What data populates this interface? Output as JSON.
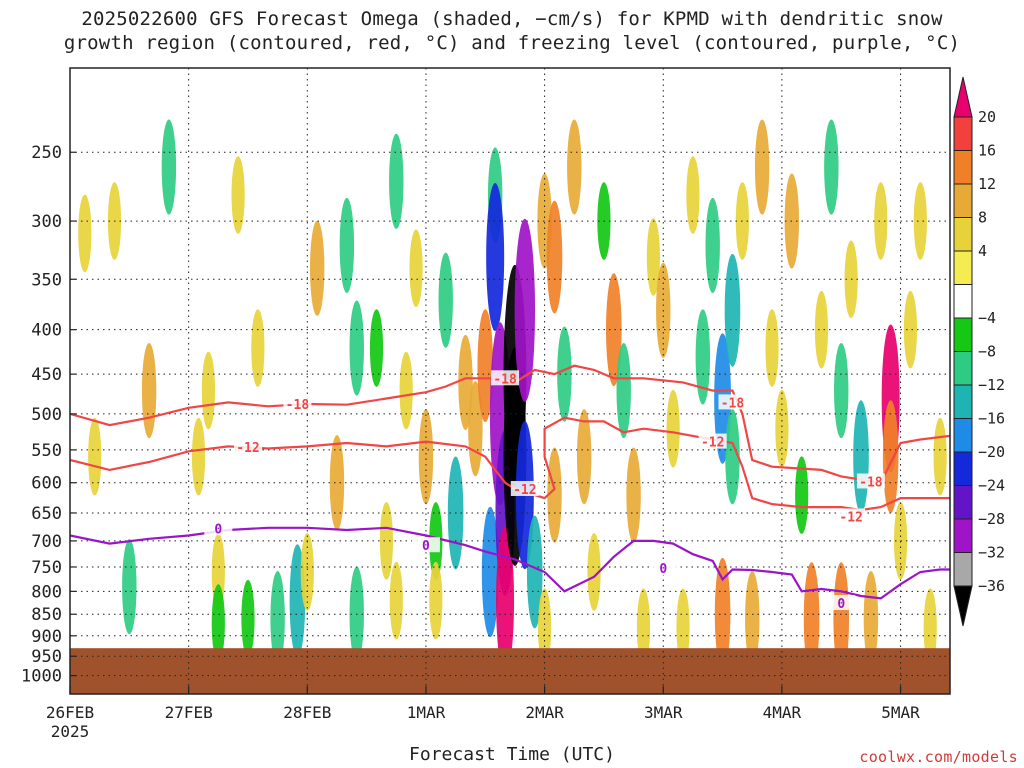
{
  "title_line1": "2025022600 GFS Forecast Omega (shaded, −cm/s) for KPMD with dendritic snow",
  "title_line2": "growth region (contoured, red, °C) and freezing level (contoured, purple, °C)",
  "xlabel": "Forecast Time (UTC)",
  "credit": "coolwx.com/models",
  "chart_data": {
    "type": "heatmap",
    "title": "2025022600 GFS Forecast Omega (shaded, −cm/s) for KPMD with dendritic snow growth region (contoured, red, °C) and freezing level (contoured, purple, °C)",
    "xlabel": "Forecast Time (UTC)",
    "ylabel": "",
    "y_scale": "log-pressure",
    "y_ticks": [
      250,
      300,
      350,
      400,
      450,
      500,
      550,
      600,
      650,
      700,
      750,
      800,
      850,
      900,
      950,
      1000
    ],
    "x_ticks": [
      "26FEB",
      "27FEB",
      "28FEB",
      "1MAR",
      "2MAR",
      "3MAR",
      "4MAR",
      "5MAR"
    ],
    "x_year_label": "2025",
    "x_range_hours": [
      0,
      178
    ],
    "y_range_hPa": [
      200,
      1050
    ],
    "ground_level_hPa": 930,
    "ground_color": "#a0522d",
    "grid": "dotted",
    "colorbar": {
      "labels": [
        "20",
        "16",
        "12",
        "8",
        "4",
        "−4",
        "−8",
        "−12",
        "−16",
        "−20",
        "−24",
        "−28",
        "−32",
        "−36"
      ],
      "colors": [
        "#e8006e",
        "#f2403c",
        "#f08028",
        "#e8aa36",
        "#e8d23a",
        "#f4ec50",
        "#ffffff",
        "#14c814",
        "#2ecc82",
        "#1eb4b4",
        "#1e8ce6",
        "#1428dc",
        "#6414c8",
        "#a014c8",
        "#a8a8a8",
        "#000000"
      ]
    },
    "omega_cells": [
      {
        "t": 3,
        "p": 310,
        "v": 4
      },
      {
        "t": 5,
        "p": 560,
        "v": 4
      },
      {
        "t": 9,
        "p": 300,
        "v": 4
      },
      {
        "t": 16,
        "p": 470,
        "v": 8
      },
      {
        "t": 12,
        "p": 790,
        "v": -8
      },
      {
        "t": 20,
        "p": 260,
        "v": -8
      },
      {
        "t": 26,
        "p": 560,
        "v": 4
      },
      {
        "t": 28,
        "p": 470,
        "v": 4
      },
      {
        "t": 30,
        "p": 760,
        "v": 4
      },
      {
        "t": 34,
        "p": 280,
        "v": 4
      },
      {
        "t": 38,
        "p": 420,
        "v": 4
      },
      {
        "t": 30,
        "p": 870,
        "v": -4
      },
      {
        "t": 36,
        "p": 860,
        "v": -4
      },
      {
        "t": 42,
        "p": 860,
        "v": -8
      },
      {
        "t": 46,
        "p": 820,
        "v": -12
      },
      {
        "t": 48,
        "p": 760,
        "v": 4
      },
      {
        "t": 50,
        "p": 340,
        "v": 8
      },
      {
        "t": 54,
        "p": 600,
        "v": 8
      },
      {
        "t": 56,
        "p": 320,
        "v": -8
      },
      {
        "t": 58,
        "p": 420,
        "v": -8
      },
      {
        "t": 58,
        "p": 850,
        "v": -8
      },
      {
        "t": 62,
        "p": 420,
        "v": -4
      },
      {
        "t": 64,
        "p": 700,
        "v": 4
      },
      {
        "t": 66,
        "p": 820,
        "v": 4
      },
      {
        "t": 66,
        "p": 270,
        "v": -8
      },
      {
        "t": 68,
        "p": 470,
        "v": 4
      },
      {
        "t": 70,
        "p": 340,
        "v": 4
      },
      {
        "t": 72,
        "p": 560,
        "v": 8
      },
      {
        "t": 74,
        "p": 700,
        "v": -4
      },
      {
        "t": 74,
        "p": 820,
        "v": 4
      },
      {
        "t": 76,
        "p": 370,
        "v": -8
      },
      {
        "t": 78,
        "p": 650,
        "v": -12
      },
      {
        "t": 80,
        "p": 460,
        "v": 8
      },
      {
        "t": 82,
        "p": 520,
        "v": 8
      },
      {
        "t": 84,
        "p": 440,
        "v": 12
      },
      {
        "t": 85,
        "p": 760,
        "v": -16
      },
      {
        "t": 86,
        "p": 280,
        "v": -8
      },
      {
        "t": 86,
        "p": 330,
        "v": -20
      },
      {
        "t": 87,
        "p": 500,
        "v": -28
      },
      {
        "t": 88,
        "p": 650,
        "v": -24
      },
      {
        "t": 88,
        "p": 820,
        "v": 20
      },
      {
        "t": 90,
        "p": 450,
        "v": -36
      },
      {
        "t": 90,
        "p": 560,
        "v": -36
      },
      {
        "t": 92,
        "p": 380,
        "v": -28
      },
      {
        "t": 92,
        "p": 620,
        "v": -20
      },
      {
        "t": 94,
        "p": 760,
        "v": -12
      },
      {
        "t": 96,
        "p": 300,
        "v": 8
      },
      {
        "t": 96,
        "p": 880,
        "v": 4
      },
      {
        "t": 98,
        "p": 330,
        "v": 12
      },
      {
        "t": 98,
        "p": 620,
        "v": 8
      },
      {
        "t": 100,
        "p": 450,
        "v": -8
      },
      {
        "t": 102,
        "p": 260,
        "v": 8
      },
      {
        "t": 104,
        "p": 560,
        "v": 8
      },
      {
        "t": 106,
        "p": 760,
        "v": 4
      },
      {
        "t": 108,
        "p": 300,
        "v": -4
      },
      {
        "t": 110,
        "p": 400,
        "v": 12
      },
      {
        "t": 112,
        "p": 470,
        "v": -8
      },
      {
        "t": 114,
        "p": 620,
        "v": 8
      },
      {
        "t": 116,
        "p": 880,
        "v": 4
      },
      {
        "t": 118,
        "p": 330,
        "v": 4
      },
      {
        "t": 120,
        "p": 380,
        "v": 8
      },
      {
        "t": 122,
        "p": 520,
        "v": 4
      },
      {
        "t": 124,
        "p": 880,
        "v": 4
      },
      {
        "t": 126,
        "p": 280,
        "v": 4
      },
      {
        "t": 128,
        "p": 430,
        "v": -8
      },
      {
        "t": 130,
        "p": 320,
        "v": -8
      },
      {
        "t": 132,
        "p": 480,
        "v": -16
      },
      {
        "t": 132,
        "p": 850,
        "v": 12
      },
      {
        "t": 134,
        "p": 380,
        "v": -12
      },
      {
        "t": 134,
        "p": 560,
        "v": -8
      },
      {
        "t": 136,
        "p": 300,
        "v": 4
      },
      {
        "t": 138,
        "p": 860,
        "v": 8
      },
      {
        "t": 140,
        "p": 260,
        "v": 8
      },
      {
        "t": 142,
        "p": 420,
        "v": 4
      },
      {
        "t": 144,
        "p": 520,
        "v": 4
      },
      {
        "t": 146,
        "p": 300,
        "v": 8
      },
      {
        "t": 148,
        "p": 620,
        "v": -4
      },
      {
        "t": 150,
        "p": 860,
        "v": 12
      },
      {
        "t": 152,
        "p": 400,
        "v": 4
      },
      {
        "t": 154,
        "p": 260,
        "v": -8
      },
      {
        "t": 156,
        "p": 470,
        "v": -8
      },
      {
        "t": 156,
        "p": 860,
        "v": 12
      },
      {
        "t": 158,
        "p": 350,
        "v": 4
      },
      {
        "t": 160,
        "p": 560,
        "v": -12
      },
      {
        "t": 162,
        "p": 860,
        "v": 8
      },
      {
        "t": 164,
        "p": 300,
        "v": 4
      },
      {
        "t": 166,
        "p": 480,
        "v": 20
      },
      {
        "t": 166,
        "p": 560,
        "v": 12
      },
      {
        "t": 168,
        "p": 700,
        "v": 4
      },
      {
        "t": 170,
        "p": 400,
        "v": 4
      },
      {
        "t": 172,
        "p": 300,
        "v": 4
      },
      {
        "t": 174,
        "p": 880,
        "v": 4
      },
      {
        "t": 176,
        "p": 560,
        "v": 4
      }
    ],
    "contours": [
      {
        "name": "-18",
        "color": "#f04646",
        "points": [
          [
            0,
            500
          ],
          [
            8,
            515
          ],
          [
            16,
            505
          ],
          [
            24,
            492
          ],
          [
            32,
            485
          ],
          [
            40,
            490
          ],
          [
            48,
            487
          ],
          [
            56,
            488
          ],
          [
            64,
            480
          ],
          [
            72,
            472
          ],
          [
            76,
            465
          ],
          [
            80,
            455
          ],
          [
            86,
            455
          ],
          [
            90,
            460
          ],
          [
            94,
            445
          ],
          [
            98,
            450
          ],
          [
            102,
            440
          ],
          [
            106,
            445
          ],
          [
            110,
            455
          ],
          [
            116,
            455
          ],
          [
            124,
            460
          ],
          [
            130,
            470
          ],
          [
            134,
            470
          ],
          [
            136,
            500
          ],
          [
            138,
            565
          ],
          [
            142,
            575
          ],
          [
            148,
            578
          ],
          [
            152,
            580
          ],
          [
            156,
            590
          ],
          [
            160,
            595
          ],
          [
            164,
            600
          ],
          [
            168,
            540
          ],
          [
            172,
            535
          ],
          [
            178,
            530
          ]
        ],
        "labels": [
          {
            "t": 46,
            "p": 487
          },
          {
            "t": 88,
            "p": 455
          },
          {
            "t": 134,
            "p": 485
          },
          {
            "t": 162,
            "p": 598
          }
        ]
      },
      {
        "name": "-12",
        "color": "#f04646",
        "points": [
          [
            0,
            565
          ],
          [
            8,
            580
          ],
          [
            16,
            568
          ],
          [
            24,
            552
          ],
          [
            32,
            545
          ],
          [
            40,
            548
          ],
          [
            48,
            545
          ],
          [
            56,
            540
          ],
          [
            64,
            545
          ],
          [
            72,
            538
          ],
          [
            80,
            545
          ],
          [
            84,
            560
          ],
          [
            86,
            580
          ],
          [
            88,
            600
          ],
          [
            90,
            610
          ],
          [
            96,
            625
          ],
          [
            98,
            610
          ],
          [
            96,
            560
          ],
          [
            96,
            520
          ],
          [
            100,
            505
          ],
          [
            104,
            510
          ],
          [
            108,
            510
          ],
          [
            112,
            525
          ],
          [
            116,
            520
          ],
          [
            122,
            525
          ],
          [
            126,
            530
          ],
          [
            130,
            535
          ],
          [
            134,
            540
          ],
          [
            136,
            575
          ],
          [
            138,
            625
          ],
          [
            142,
            635
          ],
          [
            148,
            640
          ],
          [
            152,
            640
          ],
          [
            156,
            640
          ],
          [
            160,
            645
          ],
          [
            164,
            640
          ],
          [
            168,
            625
          ],
          [
            172,
            625
          ],
          [
            178,
            625
          ]
        ],
        "labels": [
          {
            "t": 36,
            "p": 546
          },
          {
            "t": 92,
            "p": 610
          },
          {
            "t": 130,
            "p": 538
          },
          {
            "t": 158,
            "p": 656
          }
        ]
      },
      {
        "name": "0",
        "color": "#9b14c8",
        "points": [
          [
            0,
            690
          ],
          [
            8,
            705
          ],
          [
            16,
            696
          ],
          [
            24,
            690
          ],
          [
            32,
            680
          ],
          [
            40,
            676
          ],
          [
            48,
            676
          ],
          [
            56,
            680
          ],
          [
            64,
            676
          ],
          [
            72,
            690
          ],
          [
            80,
            708
          ],
          [
            84,
            720
          ],
          [
            90,
            735
          ],
          [
            96,
            760
          ],
          [
            100,
            800
          ],
          [
            106,
            770
          ],
          [
            110,
            730
          ],
          [
            114,
            700
          ],
          [
            118,
            700
          ],
          [
            122,
            705
          ],
          [
            126,
            725
          ],
          [
            130,
            738
          ],
          [
            132,
            775
          ],
          [
            134,
            755
          ],
          [
            138,
            756
          ],
          [
            142,
            760
          ],
          [
            146,
            765
          ],
          [
            148,
            800
          ],
          [
            152,
            795
          ],
          [
            156,
            800
          ],
          [
            160,
            810
          ],
          [
            164,
            815
          ],
          [
            168,
            785
          ],
          [
            172,
            760
          ],
          [
            176,
            755
          ],
          [
            178,
            755
          ]
        ],
        "labels": [
          {
            "t": 30,
            "p": 677
          },
          {
            "t": 72,
            "p": 708
          },
          {
            "t": 120,
            "p": 752
          },
          {
            "t": 156,
            "p": 825
          }
        ]
      }
    ]
  }
}
